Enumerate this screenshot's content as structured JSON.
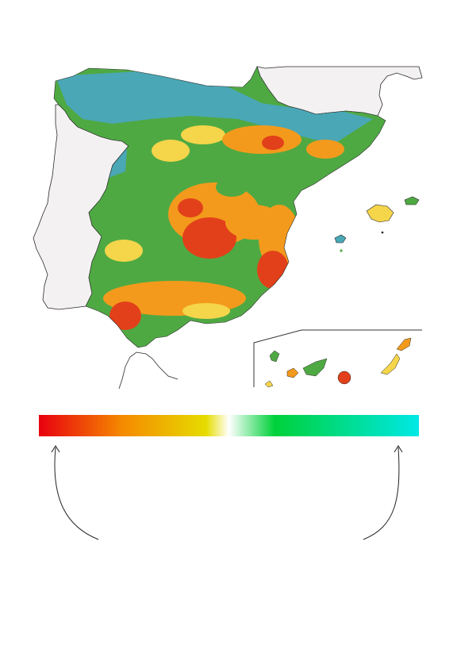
{
  "map": {
    "land_color": "#f3f1f2",
    "coast_color": "#2a2a2a",
    "inset_frame_color": "#333333"
  },
  "legend": {
    "colors": [
      "#e8000f",
      "#f58a00",
      "#e6dc00",
      "#ffffff",
      "#00d13a",
      "#00e8e6"
    ]
  },
  "palette": {
    "cyan": "#4aa7b6",
    "green": "#4fa943",
    "yellow": "#f5d54a",
    "orange": "#f39a1c",
    "red": "#e2401a",
    "pale": "#f8f4c8"
  },
  "arrows": {
    "left_icon": "curved-arrow-up-icon",
    "right_icon": "curved-arrow-up-icon"
  }
}
